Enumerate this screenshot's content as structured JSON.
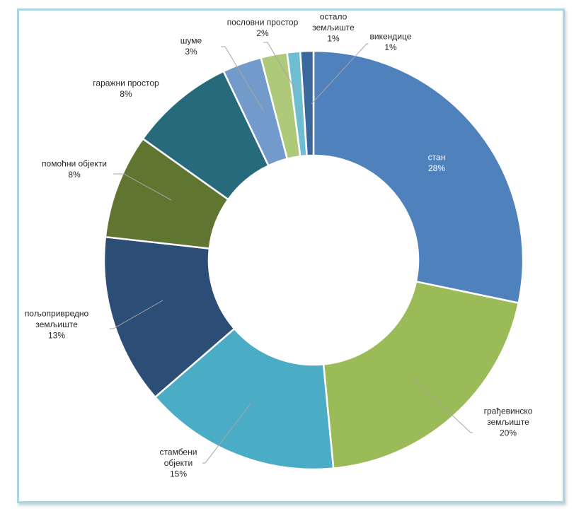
{
  "chart_data": {
    "type": "pie",
    "variant": "donut",
    "title": "",
    "unit": "%",
    "categories": [
      "стан",
      "грађевинско земљиште",
      "стамбени објекти",
      "пољопривредно земљиште",
      "помоћни објекти",
      "гаражни простор",
      "шуме",
      "пословни простор",
      "остало земљиште",
      "викендице"
    ],
    "values": [
      28,
      20,
      15,
      13,
      8,
      8,
      3,
      2,
      1,
      1
    ],
    "value_labels": [
      "28%",
      "20%",
      "15%",
      "13%",
      "8%",
      "8%",
      "3%",
      "2%",
      "1%",
      "1%"
    ],
    "label_lines": [
      [
        "стан"
      ],
      [
        "грађевинско",
        "земљиште"
      ],
      [
        "стамбени",
        "објекти"
      ],
      [
        "пољопривредно",
        "земљиште"
      ],
      [
        "помоћни објекти"
      ],
      [
        "гаражни простор"
      ],
      [
        "шуме"
      ],
      [
        "пословни простор"
      ],
      [
        "остало",
        "земљиште"
      ],
      [
        "викендице"
      ]
    ],
    "colors": [
      "#4f81bd",
      "#9bbb59",
      "#4bacc6",
      "#2c4d75",
      "#5f7530",
      "#276a7c",
      "#729aca",
      "#afc97a",
      "#6fbdd1",
      "#3a679c"
    ],
    "legend": "none",
    "start_angle_deg": 0,
    "direction": "clockwise"
  }
}
